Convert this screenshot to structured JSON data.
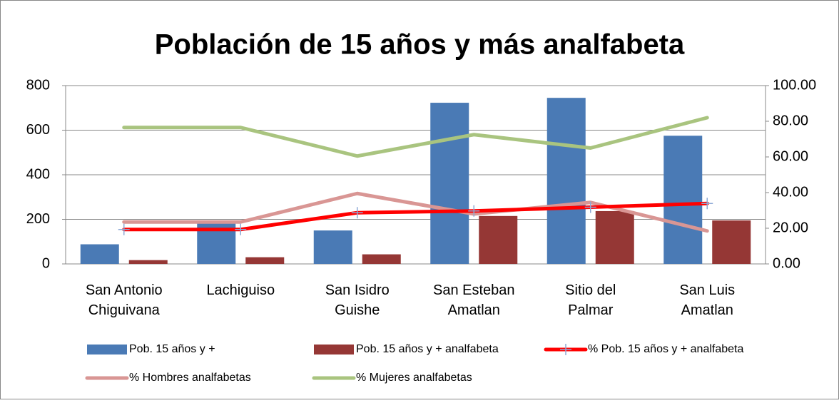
{
  "chart_data": {
    "type": "bar",
    "title": "Población de 15 años y más analfabeta",
    "categories": [
      [
        "San Antonio",
        "Chiguivana"
      ],
      [
        "Lachiguiso"
      ],
      [
        "San Isidro",
        "Guishe"
      ],
      [
        "San Esteban",
        "Amatlan"
      ],
      [
        "Sitio del",
        "Palmar"
      ],
      [
        "San Luis",
        "Amatlan"
      ]
    ],
    "series": [
      {
        "name": "Pob. 15 años y +",
        "type": "bar",
        "color": "#4a7ab5",
        "values": [
          88,
          190,
          150,
          723,
          745,
          575
        ]
      },
      {
        "name": "Pob. 15 años y + analfabeta",
        "type": "bar",
        "color": "#953735",
        "values": [
          17,
          30,
          43,
          215,
          237,
          195
        ]
      },
      {
        "name": "% Pob. 15 años y + analfabeta",
        "type": "line",
        "axis": "y2",
        "color": "#ff0000",
        "marker": "cross",
        "marker_color": "#8ea9d6",
        "values": [
          19.3,
          19.3,
          28.7,
          29.7,
          31.8,
          33.9
        ]
      },
      {
        "name": "% Hombres analfabetas",
        "type": "line",
        "axis": "y2",
        "color": "#d99694",
        "values": [
          23.5,
          23.5,
          39.5,
          28,
          34.5,
          18.5
        ]
      },
      {
        "name": "% Mujeres analfabetas",
        "type": "line",
        "axis": "y2",
        "color": "#a9c47f",
        "values": [
          76.5,
          76.5,
          60.5,
          72.5,
          65,
          82
        ]
      }
    ],
    "ylim": [
      0,
      800
    ],
    "yticks": [
      0,
      200,
      400,
      600,
      800
    ],
    "y2lim": [
      0,
      100
    ],
    "y2ticks": [
      {
        "value": 0,
        "label": "0.00"
      },
      {
        "value": 20,
        "label": "20.00"
      },
      {
        "value": 40,
        "label": "40.00"
      },
      {
        "value": 60,
        "label": "60.00"
      },
      {
        "value": 80,
        "label": "80.00"
      },
      {
        "value": 100,
        "label": "100.00"
      }
    ],
    "grid": true,
    "legend": "bottom"
  }
}
